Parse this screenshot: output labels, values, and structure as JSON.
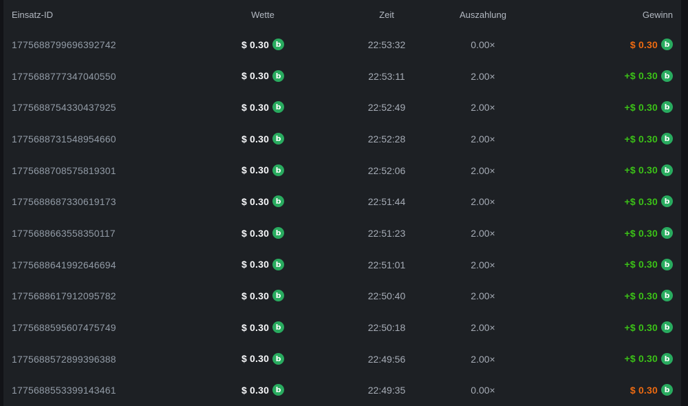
{
  "table": {
    "columns": [
      {
        "key": "id",
        "label": "Einsatz-ID"
      },
      {
        "key": "bet",
        "label": "Wette"
      },
      {
        "key": "time",
        "label": "Zeit"
      },
      {
        "key": "payout",
        "label": "Auszahlung"
      },
      {
        "key": "profit",
        "label": "Gewinn"
      }
    ],
    "rows": [
      {
        "id": "1775688799696392742",
        "bet": "$ 0.30",
        "time": "22:53:32",
        "payout": "0.00×",
        "profit": "$ 0.30",
        "outcome": "loss"
      },
      {
        "id": "1775688777347040550",
        "bet": "$ 0.30",
        "time": "22:53:11",
        "payout": "2.00×",
        "profit": "+$ 0.30",
        "outcome": "win"
      },
      {
        "id": "1775688754330437925",
        "bet": "$ 0.30",
        "time": "22:52:49",
        "payout": "2.00×",
        "profit": "+$ 0.30",
        "outcome": "win"
      },
      {
        "id": "1775688731548954660",
        "bet": "$ 0.30",
        "time": "22:52:28",
        "payout": "2.00×",
        "profit": "+$ 0.30",
        "outcome": "win"
      },
      {
        "id": "1775688708575819301",
        "bet": "$ 0.30",
        "time": "22:52:06",
        "payout": "2.00×",
        "profit": "+$ 0.30",
        "outcome": "win"
      },
      {
        "id": "1775688687330619173",
        "bet": "$ 0.30",
        "time": "22:51:44",
        "payout": "2.00×",
        "profit": "+$ 0.30",
        "outcome": "win"
      },
      {
        "id": "1775688663558350117",
        "bet": "$ 0.30",
        "time": "22:51:23",
        "payout": "2.00×",
        "profit": "+$ 0.30",
        "outcome": "win"
      },
      {
        "id": "1775688641992646694",
        "bet": "$ 0.30",
        "time": "22:51:01",
        "payout": "2.00×",
        "profit": "+$ 0.30",
        "outcome": "win"
      },
      {
        "id": "1775688617912095782",
        "bet": "$ 0.30",
        "time": "22:50:40",
        "payout": "2.00×",
        "profit": "+$ 0.30",
        "outcome": "win"
      },
      {
        "id": "1775688595607475749",
        "bet": "$ 0.30",
        "time": "22:50:18",
        "payout": "2.00×",
        "profit": "+$ 0.30",
        "outcome": "win"
      },
      {
        "id": "1775688572899396388",
        "bet": "$ 0.30",
        "time": "22:49:56",
        "payout": "2.00×",
        "profit": "+$ 0.30",
        "outcome": "win"
      },
      {
        "id": "1775688553399143461",
        "bet": "$ 0.30",
        "time": "22:49:35",
        "payout": "0.00×",
        "profit": "$ 0.30",
        "outcome": "loss"
      }
    ]
  },
  "icons": {
    "currency": {
      "name": "bcd-coin-icon",
      "glyph": "b"
    }
  },
  "colors": {
    "win": "#3bc117",
    "loss": "#ed6a11",
    "coin": "#29ab5f"
  }
}
